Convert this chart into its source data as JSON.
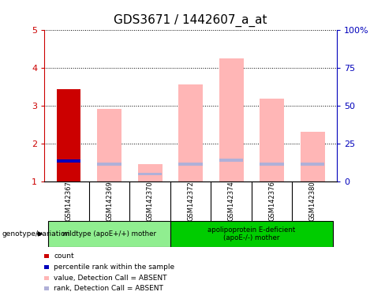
{
  "title": "GDS3671 / 1442607_a_at",
  "samples": [
    "GSM142367",
    "GSM142369",
    "GSM142370",
    "GSM142372",
    "GSM142374",
    "GSM142376",
    "GSM142380"
  ],
  "red_bars": [
    3.45,
    0,
    0,
    0,
    0,
    0,
    0
  ],
  "blue_bars": [
    1.55,
    0,
    0,
    0,
    0,
    0,
    0
  ],
  "pink_bars": [
    0,
    2.93,
    1.47,
    3.57,
    4.25,
    3.2,
    2.33
  ],
  "lavender_bars": [
    0,
    1.47,
    1.2,
    1.47,
    1.57,
    1.47,
    1.47
  ],
  "ylim": [
    1,
    5
  ],
  "yticks": [
    1,
    2,
    3,
    4,
    5
  ],
  "y2ticks": [
    0,
    25,
    50,
    75,
    100
  ],
  "y2ticklabels": [
    "0",
    "25",
    "50",
    "75",
    "100%"
  ],
  "group1_label": "wildtype (apoE+/+) mother",
  "group2_label": "apolipoprotein E-deficient\n(apoE-/-) mother",
  "genotype_label": "genotype/variation",
  "legend_items": [
    {
      "color": "#cc0000",
      "label": "count"
    },
    {
      "color": "#0000bb",
      "label": "percentile rank within the sample"
    },
    {
      "color": "#ffb6b6",
      "label": "value, Detection Call = ABSENT"
    },
    {
      "color": "#b0b0d8",
      "label": "rank, Detection Call = ABSENT"
    }
  ],
  "bar_width": 0.6,
  "plot_bg": "#ffffff",
  "group1_bg": "#90ee90",
  "group2_bg": "#00cc00",
  "gray_bg": "#d3d3d3",
  "red_color": "#cc0000",
  "blue_color": "#0000bb",
  "pink_color": "#ffb6b6",
  "lavender_color": "#b0b0d8",
  "title_fontsize": 11,
  "left_axis_color": "#cc0000",
  "right_axis_color": "#0000bb"
}
